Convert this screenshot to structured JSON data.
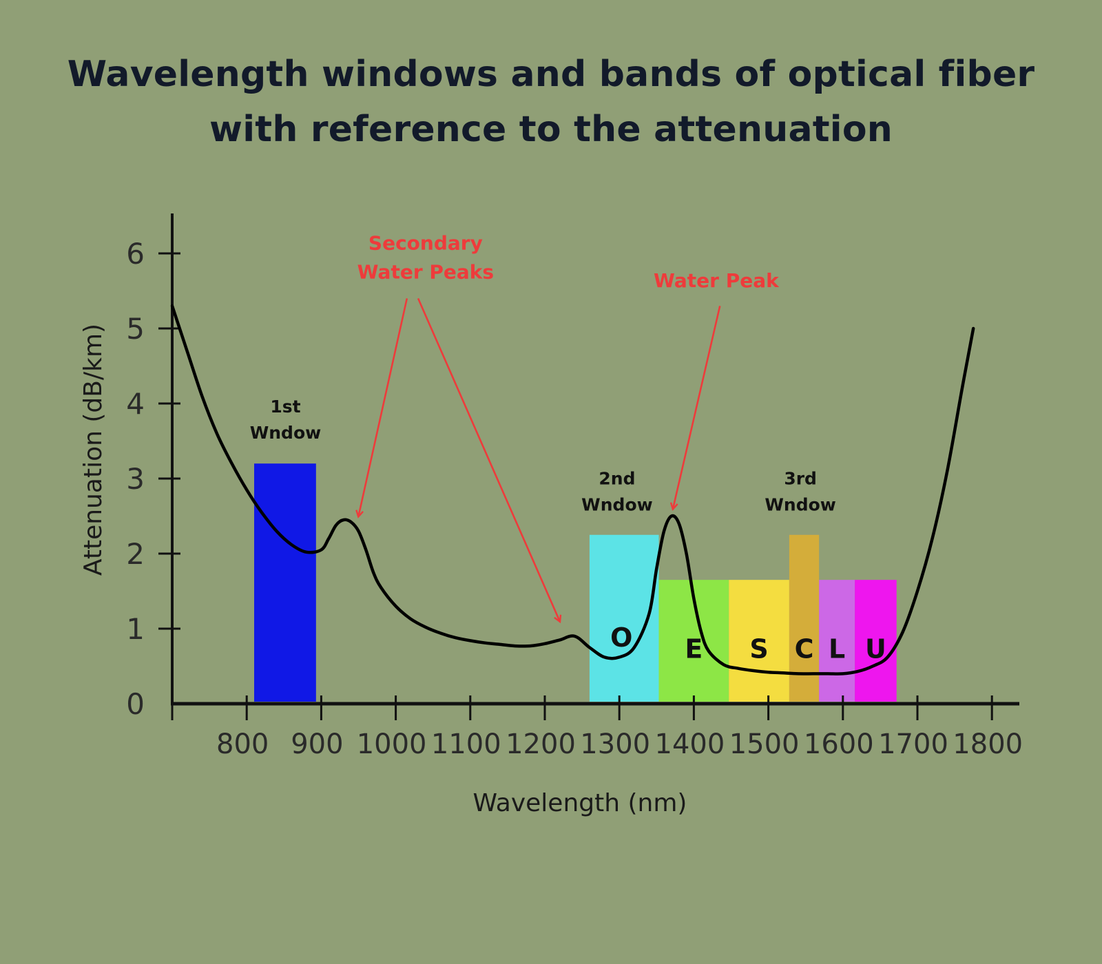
{
  "title_lines": [
    "Wavelength windows and bands of optical fiber",
    "with reference to the attenuation"
  ],
  "colors": {
    "background": "#909f76",
    "title": "#121a2a",
    "axis": "#111111",
    "annotation": "#ee3b3b"
  },
  "chart_data": {
    "type": "line",
    "title": "Wavelength windows and bands of optical fiber with reference to the attenuation",
    "xlabel": "Wavelength (nm)",
    "ylabel": "Attenuation (dB/km)",
    "xlim": [
      700,
      1840
    ],
    "ylim": [
      0,
      6.5
    ],
    "xticks": [
      800,
      900,
      1000,
      1100,
      1200,
      1300,
      1400,
      1500,
      1600,
      1700,
      1800
    ],
    "yticks": [
      0,
      1,
      2,
      3,
      4,
      5,
      6
    ],
    "grid": false,
    "series": [
      {
        "x": [
          700,
          720,
          740,
          760,
          780,
          800,
          820,
          840,
          860,
          880,
          900,
          910,
          920,
          930,
          940,
          950,
          960,
          970,
          980,
          1000,
          1020,
          1040,
          1060,
          1080,
          1100,
          1120,
          1140,
          1160,
          1180,
          1200,
          1220,
          1240,
          1260,
          1280,
          1300,
          1320,
          1340,
          1350,
          1360,
          1370,
          1380,
          1390,
          1400,
          1410,
          1420,
          1440,
          1460,
          1480,
          1500,
          1520,
          1540,
          1560,
          1580,
          1600,
          1620,
          1640,
          1660,
          1680,
          1700,
          1720,
          1740,
          1760,
          1775
        ],
        "y": [
          5.3,
          4.7,
          4.1,
          3.6,
          3.2,
          2.85,
          2.55,
          2.3,
          2.12,
          2.02,
          2.05,
          2.2,
          2.38,
          2.45,
          2.42,
          2.3,
          2.05,
          1.75,
          1.55,
          1.3,
          1.13,
          1.02,
          0.94,
          0.88,
          0.84,
          0.81,
          0.79,
          0.77,
          0.77,
          0.8,
          0.85,
          0.9,
          0.75,
          0.62,
          0.62,
          0.75,
          1.2,
          1.8,
          2.3,
          2.5,
          2.4,
          2.0,
          1.4,
          0.95,
          0.7,
          0.52,
          0.47,
          0.44,
          0.42,
          0.41,
          0.4,
          0.4,
          0.4,
          0.4,
          0.43,
          0.5,
          0.62,
          0.95,
          1.5,
          2.2,
          3.1,
          4.2,
          5.0
        ]
      }
    ],
    "bands": [
      {
        "label": "",
        "x0": 810,
        "x1": 893,
        "top": 3.2,
        "color": "#1018e6"
      },
      {
        "label": "O",
        "x0": 1260,
        "x1": 1353,
        "top": 2.25,
        "color": "#5ce3e6"
      },
      {
        "label": "E",
        "x0": 1353,
        "x1": 1447,
        "top": 1.65,
        "color": "#8de646"
      },
      {
        "label": "S",
        "x0": 1447,
        "x1": 1528,
        "top": 1.65,
        "color": "#f4dd40"
      },
      {
        "label": "C",
        "x0": 1528,
        "x1": 1568,
        "top": 2.25,
        "color": "#d4ad3a"
      },
      {
        "label": "L",
        "x0": 1568,
        "x1": 1616,
        "top": 1.65,
        "color": "#cc68e6"
      },
      {
        "label": "U",
        "x0": 1616,
        "x1": 1672,
        "top": 1.65,
        "color": "#ee16ee"
      }
    ],
    "window_labels": [
      {
        "lines": [
          "1st",
          "Wndow"
        ],
        "x": 852,
        "y": 3.88
      },
      {
        "lines": [
          "2nd",
          "Wndow"
        ],
        "x": 1297,
        "y": 2.92
      },
      {
        "lines": [
          "3rd",
          "Wndow"
        ],
        "x": 1543,
        "y": 2.92
      }
    ],
    "annotations": [
      {
        "lines": [
          "Secondary",
          "Water Peaks"
        ],
        "x": 1040,
        "y": 6.05,
        "arrows": [
          {
            "from": [
              1015,
              5.4
            ],
            "to": [
              950,
              2.5
            ]
          },
          {
            "from": [
              1030,
              5.4
            ],
            "to": [
              1220,
              1.1
            ]
          }
        ]
      },
      {
        "lines": [
          "Water Peak"
        ],
        "x": 1430,
        "y": 5.55,
        "arrows": [
          {
            "from": [
              1435,
              5.3
            ],
            "to": [
              1372,
              2.6
            ]
          }
        ]
      }
    ]
  }
}
